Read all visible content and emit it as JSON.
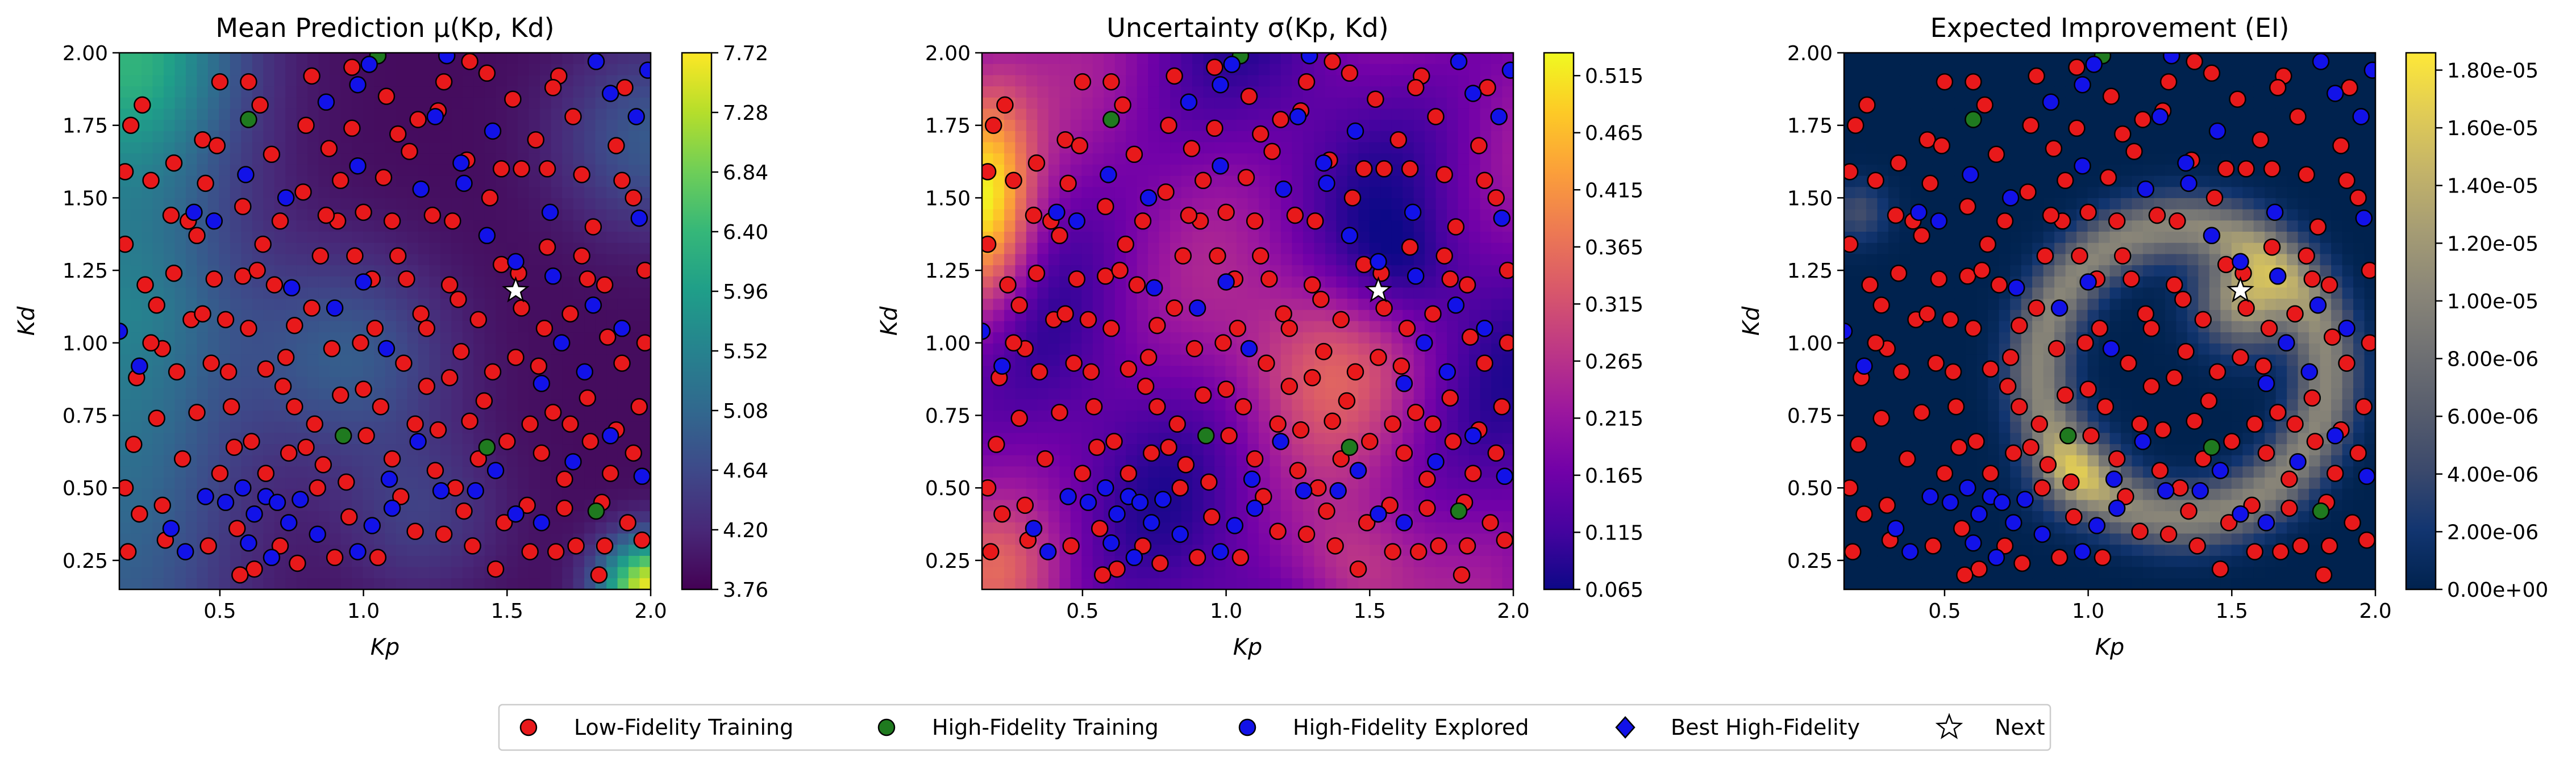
{
  "legend": {
    "placement": "bottom-center",
    "items": [
      {
        "label": "Low-Fidelity Training",
        "marker": "circle",
        "color": "#e8191b"
      },
      {
        "label": "High-Fidelity Training",
        "marker": "circle",
        "color": "#1f7a1f"
      },
      {
        "label": "High-Fidelity Explored",
        "marker": "circle",
        "color": "#1212e8"
      },
      {
        "label": "Best High-Fidelity",
        "marker": "diamond",
        "color": "#1212e8"
      },
      {
        "label": "Next",
        "marker": "star",
        "color": "#ffffff"
      }
    ]
  },
  "chart_data": [
    {
      "type": "heatmap",
      "title": "Mean Prediction μ(Kp, Kd)",
      "xlabel": "Kp",
      "ylabel": "Kd",
      "xlim": [
        0.15,
        2.0
      ],
      "ylim": [
        0.15,
        2.0
      ],
      "xticks": [
        "0.5",
        "1.0",
        "1.5",
        "2.0"
      ],
      "yticks": [
        "0.25",
        "0.50",
        "0.75",
        "1.00",
        "1.25",
        "1.50",
        "1.75",
        "2.00"
      ],
      "colormap": "viridis",
      "colorbar_range": [
        3.76,
        7.72
      ],
      "colorbar_ticks": [
        "3.76",
        "4.20",
        "4.64",
        "5.08",
        "5.52",
        "5.96",
        "6.40",
        "6.84",
        "7.28",
        "7.72"
      ],
      "next_point": [
        1.53,
        1.18
      ]
    },
    {
      "type": "heatmap",
      "title": "Uncertainty σ(Kp, Kd)",
      "xlabel": "Kp",
      "ylabel": "Kd",
      "xlim": [
        0.15,
        2.0
      ],
      "ylim": [
        0.15,
        2.0
      ],
      "xticks": [
        "0.5",
        "1.0",
        "1.5",
        "2.0"
      ],
      "yticks": [
        "0.25",
        "0.50",
        "0.75",
        "1.00",
        "1.25",
        "1.50",
        "1.75",
        "2.00"
      ],
      "colormap": "plasma",
      "colorbar_range": [
        0.065,
        0.535
      ],
      "colorbar_ticks": [
        "0.065",
        "0.115",
        "0.165",
        "0.215",
        "0.265",
        "0.315",
        "0.365",
        "0.415",
        "0.465",
        "0.515"
      ],
      "next_point": [
        1.53,
        1.18
      ]
    },
    {
      "type": "heatmap",
      "title": "Expected Improvement (EI)",
      "xlabel": "Kp",
      "ylabel": "Kd",
      "xlim": [
        0.15,
        2.0
      ],
      "ylim": [
        0.15,
        2.0
      ],
      "xticks": [
        "0.5",
        "1.0",
        "1.5",
        "2.0"
      ],
      "yticks": [
        "0.25",
        "0.50",
        "0.75",
        "1.00",
        "1.25",
        "1.50",
        "1.75",
        "2.00"
      ],
      "colormap": "cividis",
      "colorbar_range": [
        0.0,
        1.86e-05
      ],
      "colorbar_ticks": [
        "0.00e+00",
        "2.00e-06",
        "4.00e-06",
        "6.00e-06",
        "8.00e-06",
        "1.00e-05",
        "1.20e-05",
        "1.40e-05",
        "1.60e-05",
        "1.80e-05"
      ],
      "next_point": [
        1.53,
        1.18
      ]
    }
  ],
  "training_points": {
    "high_fidelity_training": [
      [
        0.6,
        1.77
      ],
      [
        0.93,
        0.68
      ],
      [
        1.43,
        0.64
      ],
      [
        1.81,
        0.42
      ],
      [
        1.05,
        1.99
      ]
    ],
    "high_fidelity_explored": [
      [
        0.15,
        1.04
      ],
      [
        0.22,
        0.92
      ],
      [
        0.33,
        0.36
      ],
      [
        0.38,
        0.28
      ],
      [
        0.45,
        0.47
      ],
      [
        0.52,
        0.45
      ],
      [
        0.58,
        0.5
      ],
      [
        0.62,
        0.41
      ],
      [
        0.66,
        0.47
      ],
      [
        0.7,
        0.45
      ],
      [
        0.74,
        0.38
      ],
      [
        0.78,
        0.46
      ],
      [
        0.6,
        0.31
      ],
      [
        0.68,
        0.26
      ],
      [
        0.84,
        0.34
      ],
      [
        0.98,
        0.28
      ],
      [
        1.03,
        0.37
      ],
      [
        1.1,
        0.43
      ],
      [
        1.27,
        0.49
      ],
      [
        1.39,
        0.49
      ],
      [
        1.53,
        0.41
      ],
      [
        1.62,
        0.38
      ],
      [
        1.86,
        0.68
      ],
      [
        1.97,
        0.54
      ],
      [
        1.9,
        1.05
      ],
      [
        1.8,
        1.13
      ],
      [
        1.66,
        1.23
      ],
      [
        1.96,
        1.43
      ],
      [
        1.95,
        1.78
      ],
      [
        1.86,
        1.86
      ],
      [
        1.99,
        1.94
      ],
      [
        1.81,
        1.97
      ],
      [
        1.65,
        1.45
      ],
      [
        1.53,
        1.28
      ],
      [
        1.43,
        1.37
      ],
      [
        1.35,
        1.55
      ],
      [
        1.34,
        1.62
      ],
      [
        1.25,
        1.78
      ],
      [
        1.02,
        1.96
      ],
      [
        0.87,
        1.83
      ],
      [
        0.73,
        1.5
      ],
      [
        0.59,
        1.58
      ],
      [
        0.48,
        1.42
      ],
      [
        0.41,
        1.45
      ],
      [
        0.75,
        1.19
      ],
      [
        0.9,
        1.12
      ],
      [
        1.0,
        1.21
      ],
      [
        1.08,
        0.98
      ],
      [
        1.19,
        0.66
      ],
      [
        1.09,
        0.53
      ],
      [
        1.45,
        1.73
      ],
      [
        1.2,
        1.53
      ],
      [
        1.29,
        1.99
      ],
      [
        1.73,
        0.59
      ],
      [
        0.98,
        1.61
      ],
      [
        1.46,
        0.56
      ],
      [
        1.62,
        0.86
      ],
      [
        1.69,
        1.0
      ],
      [
        0.98,
        1.89
      ],
      [
        1.77,
        0.9
      ]
    ],
    "low_fidelity_training": [
      [
        0.17,
        1.59
      ],
      [
        0.17,
        1.34
      ],
      [
        0.2,
        0.65
      ],
      [
        0.22,
        0.41
      ],
      [
        0.17,
        0.5
      ],
      [
        0.23,
        1.82
      ],
      [
        0.21,
        0.88
      ],
      [
        0.28,
        1.13
      ],
      [
        0.31,
        0.32
      ],
      [
        0.3,
        0.98
      ],
      [
        0.26,
        1.0
      ],
      [
        0.33,
        1.44
      ],
      [
        0.34,
        1.24
      ],
      [
        0.39,
        1.42
      ],
      [
        0.42,
        1.37
      ],
      [
        0.44,
        1.7
      ],
      [
        0.49,
        1.68
      ],
      [
        0.47,
        0.93
      ],
      [
        0.5,
        0.55
      ],
      [
        0.55,
        0.64
      ],
      [
        0.54,
        0.78
      ],
      [
        0.58,
        1.23
      ],
      [
        0.6,
        1.05
      ],
      [
        0.64,
        1.82
      ],
      [
        0.65,
        1.34
      ],
      [
        0.68,
        1.65
      ],
      [
        0.69,
        1.2
      ],
      [
        0.72,
        0.85
      ],
      [
        0.73,
        0.95
      ],
      [
        0.76,
        0.78
      ],
      [
        0.79,
        1.52
      ],
      [
        0.82,
        1.12
      ],
      [
        0.83,
        0.72
      ],
      [
        0.86,
        0.58
      ],
      [
        0.88,
        1.67
      ],
      [
        0.91,
        1.42
      ],
      [
        0.92,
        0.82
      ],
      [
        0.94,
        0.52
      ],
      [
        0.96,
        1.74
      ],
      [
        0.99,
        1.0
      ],
      [
        1.0,
        1.45
      ],
      [
        1.03,
        1.22
      ],
      [
        1.06,
        0.78
      ],
      [
        1.08,
        1.85
      ],
      [
        1.1,
        0.6
      ],
      [
        1.12,
        1.3
      ],
      [
        1.14,
        0.93
      ],
      [
        1.16,
        1.66
      ],
      [
        1.18,
        0.35
      ],
      [
        1.2,
        1.1
      ],
      [
        1.22,
        0.85
      ],
      [
        1.24,
        1.44
      ],
      [
        1.26,
        0.7
      ],
      [
        1.28,
        1.9
      ],
      [
        1.3,
        1.2
      ],
      [
        1.32,
        0.5
      ],
      [
        1.34,
        0.97
      ],
      [
        1.36,
        1.63
      ],
      [
        1.38,
        0.3
      ],
      [
        1.4,
        1.08
      ],
      [
        1.42,
        0.8
      ],
      [
        1.44,
        1.5
      ],
      [
        1.46,
        0.22
      ],
      [
        1.48,
        1.27
      ],
      [
        1.5,
        0.66
      ],
      [
        1.52,
        1.84
      ],
      [
        1.53,
        0.95
      ],
      [
        1.55,
        1.12
      ],
      [
        1.57,
        0.44
      ],
      [
        1.6,
        1.7
      ],
      [
        1.62,
        0.62
      ],
      [
        1.64,
        1.33
      ],
      [
        1.66,
        0.76
      ],
      [
        1.68,
        1.92
      ],
      [
        1.7,
        0.53
      ],
      [
        1.72,
        1.1
      ],
      [
        1.74,
        0.3
      ],
      [
        1.76,
        1.58
      ],
      [
        1.78,
        0.81
      ],
      [
        1.8,
        1.4
      ],
      [
        1.82,
        0.2
      ],
      [
        1.84,
        1.2
      ],
      [
        1.86,
        0.55
      ],
      [
        1.88,
        1.68
      ],
      [
        1.9,
        0.93
      ],
      [
        1.92,
        0.38
      ],
      [
        1.94,
        1.5
      ],
      [
        1.96,
        0.78
      ],
      [
        1.98,
        1.25
      ],
      [
        0.37,
        0.6
      ],
      [
        0.42,
        0.76
      ],
      [
        0.46,
        0.3
      ],
      [
        0.52,
        1.08
      ],
      [
        0.56,
        0.36
      ],
      [
        0.61,
        0.66
      ],
      [
        0.66,
        0.91
      ],
      [
        0.71,
        1.42
      ],
      [
        0.77,
        0.24
      ],
      [
        0.8,
        0.64
      ],
      [
        0.85,
        1.3
      ],
      [
        0.89,
        0.98
      ],
      [
        0.95,
        0.4
      ],
      [
        1.01,
        0.68
      ],
      [
        1.07,
        1.57
      ],
      [
        1.13,
        0.47
      ],
      [
        1.19,
        1.77
      ],
      [
        1.25,
        0.56
      ],
      [
        1.31,
        1.42
      ],
      [
        1.37,
        0.73
      ],
      [
        1.43,
        1.93
      ],
      [
        1.49,
        0.38
      ],
      [
        1.55,
        1.6
      ],
      [
        1.61,
        0.92
      ],
      [
        1.67,
        0.28
      ],
      [
        1.73,
        1.78
      ],
      [
        1.79,
        0.66
      ],
      [
        1.85,
        1.02
      ],
      [
        1.91,
        1.88
      ],
      [
        1.97,
        0.32
      ],
      [
        0.28,
        0.74
      ],
      [
        0.34,
        1.62
      ],
      [
        0.4,
        1.08
      ],
      [
        0.6,
        1.9
      ],
      [
        0.82,
        1.92
      ],
      [
        1.05,
        0.26
      ],
      [
        1.28,
        0.34
      ],
      [
        1.58,
        0.28
      ],
      [
        1.88,
        0.7
      ],
      [
        0.48,
        1.22
      ],
      [
        0.62,
        0.22
      ],
      [
        0.74,
        0.62
      ],
      [
        0.9,
        0.26
      ],
      [
        1.15,
        1.22
      ],
      [
        1.33,
        1.15
      ],
      [
        1.63,
        1.05
      ],
      [
        1.7,
        0.43
      ],
      [
        0.18,
        0.28
      ],
      [
        0.26,
        1.56
      ],
      [
        0.44,
        1.1
      ],
      [
        0.58,
        1.47
      ],
      [
        0.76,
        1.06
      ],
      [
        0.92,
        1.56
      ],
      [
        1.1,
        1.42
      ],
      [
        1.22,
        1.05
      ],
      [
        1.4,
        0.6
      ],
      [
        1.58,
        0.72
      ],
      [
        1.76,
        1.3
      ],
      [
        1.94,
        0.62
      ],
      [
        0.35,
        0.9
      ],
      [
        0.53,
        0.9
      ],
      [
        0.71,
        0.3
      ],
      [
        0.87,
        1.44
      ],
      [
        1.04,
        1.05
      ],
      [
        1.26,
        1.8
      ],
      [
        1.45,
        0.9
      ],
      [
        1.64,
        1.6
      ],
      [
        1.83,
        0.45
      ],
      [
        1.98,
        1.0
      ],
      [
        0.24,
        1.2
      ],
      [
        0.5,
        1.9
      ],
      [
        0.66,
        0.55
      ],
      [
        0.84,
        0.5
      ],
      [
        1.0,
        0.84
      ],
      [
        1.18,
        0.72
      ],
      [
        1.35,
        0.42
      ],
      [
        1.54,
        1.24
      ],
      [
        1.72,
        0.72
      ],
      [
        1.9,
        1.56
      ],
      [
        0.3,
        0.44
      ],
      [
        0.45,
        1.55
      ],
      [
        0.63,
        1.25
      ],
      [
        0.8,
        1.75
      ],
      [
        0.97,
        1.3
      ],
      [
        1.12,
        1.72
      ],
      [
        1.3,
        0.88
      ],
      [
        1.48,
        1.6
      ],
      [
        1.66,
        1.88
      ],
      [
        1.84,
        0.3
      ],
      [
        0.19,
        1.75
      ],
      [
        0.57,
        0.2
      ],
      [
        0.96,
        1.95
      ],
      [
        1.37,
        1.97
      ],
      [
        1.78,
        1.22
      ]
    ],
    "next_point": [
      1.53,
      1.18
    ]
  }
}
